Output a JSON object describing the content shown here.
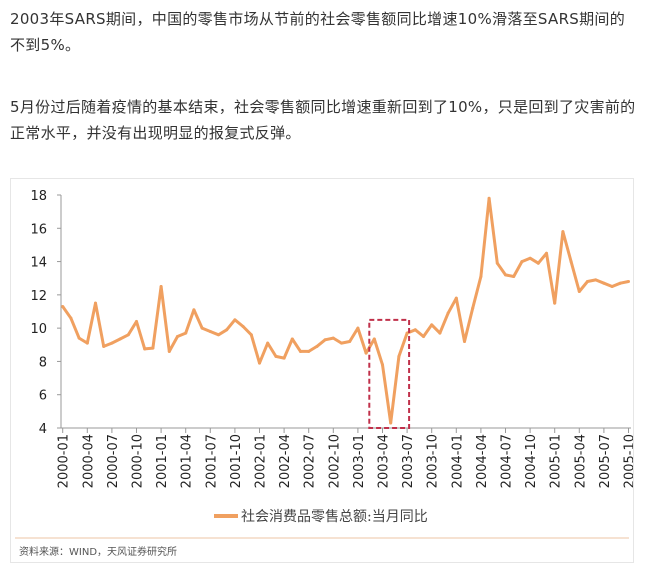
{
  "article": {
    "paragraphs": [
      "2003年SARS期间，中国的零售市场从节前的社会零售额同比增速10%滑落至SARS期间的不到5%。",
      "5月份过后随着疫情的基本结束，社会零售额同比增速重新回到了10%，只是回到了灾害前的正常水平，并没有出现明显的报复式反弹。"
    ]
  },
  "chart_data": {
    "type": "line",
    "title": "",
    "xlabel": "",
    "ylabel": "",
    "ylim": [
      4,
      18
    ],
    "yticks": [
      4,
      6,
      8,
      10,
      12,
      14,
      16,
      18
    ],
    "xtick_labels": [
      "2000-01",
      "2000-04",
      "2000-07",
      "2000-10",
      "2001-01",
      "2001-04",
      "2001-07",
      "2001-10",
      "2002-01",
      "2002-04",
      "2002-07",
      "2002-10",
      "2003-01",
      "2003-04",
      "2003-07",
      "2003-10",
      "2004-01",
      "2004-04",
      "2004-07",
      "2004-10",
      "2005-01",
      "2005-04",
      "2005-07",
      "2005-10"
    ],
    "grid": false,
    "legend_position": "bottom",
    "series": [
      {
        "name": "社会消费品零售总额:当月同比",
        "color": "#f0a060",
        "x": [
          "2000-01",
          "2000-02",
          "2000-03",
          "2000-04",
          "2000-05",
          "2000-06",
          "2000-07",
          "2000-08",
          "2000-09",
          "2000-10",
          "2000-11",
          "2000-12",
          "2001-01",
          "2001-02",
          "2001-03",
          "2001-04",
          "2001-05",
          "2001-06",
          "2001-07",
          "2001-08",
          "2001-09",
          "2001-10",
          "2001-11",
          "2001-12",
          "2002-01",
          "2002-02",
          "2002-03",
          "2002-04",
          "2002-05",
          "2002-06",
          "2002-07",
          "2002-08",
          "2002-09",
          "2002-10",
          "2002-11",
          "2002-12",
          "2003-01",
          "2003-02",
          "2003-03",
          "2003-04",
          "2003-05",
          "2003-06",
          "2003-07",
          "2003-08",
          "2003-09",
          "2003-10",
          "2003-11",
          "2003-12",
          "2004-01",
          "2004-02",
          "2004-03",
          "2004-04",
          "2004-05",
          "2004-06",
          "2004-07",
          "2004-08",
          "2004-09",
          "2004-10",
          "2004-11",
          "2004-12",
          "2005-01",
          "2005-02",
          "2005-03",
          "2005-04",
          "2005-05",
          "2005-06",
          "2005-07",
          "2005-08",
          "2005-09",
          "2005-10"
        ],
        "values": [
          11.3,
          10.6,
          9.4,
          9.1,
          11.5,
          8.9,
          9.1,
          9.35,
          9.6,
          10.4,
          8.75,
          8.8,
          12.5,
          8.6,
          9.5,
          9.7,
          11.1,
          10.0,
          9.8,
          9.6,
          9.9,
          10.5,
          10.1,
          9.6,
          7.9,
          9.1,
          8.3,
          8.2,
          9.35,
          8.6,
          8.6,
          8.9,
          9.3,
          9.4,
          9.1,
          9.2,
          10.0,
          8.5,
          9.35,
          7.8,
          4.3,
          8.3,
          9.7,
          9.9,
          9.5,
          10.2,
          9.7,
          10.9,
          11.8,
          9.2,
          11.2,
          13.1,
          17.8,
          13.9,
          13.2,
          13.1,
          14.0,
          14.2,
          13.9,
          14.5,
          11.5,
          15.8,
          14.0,
          12.2,
          12.8,
          12.9,
          12.7,
          12.5,
          12.7,
          12.8
        ]
      }
    ],
    "annotations": [
      {
        "type": "dashed-box",
        "color": "#c0304a",
        "x_range": [
          "2003-03",
          "2003-07"
        ],
        "y_range": [
          4,
          10.5
        ]
      }
    ],
    "source": "资料来源：WIND，天风证券研究所"
  }
}
